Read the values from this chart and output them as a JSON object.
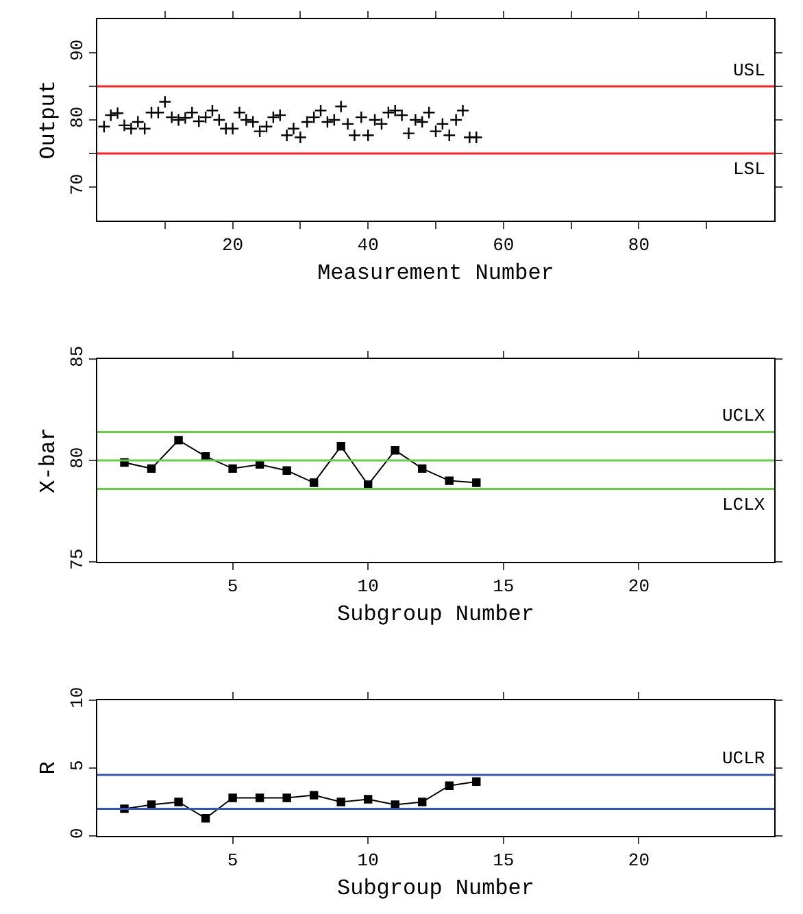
{
  "chart_data": [
    {
      "type": "scatter",
      "xlabel": "Measurement Number",
      "ylabel": "Output",
      "marker": "cross",
      "xlim": [
        0,
        100
      ],
      "ylim": [
        65,
        95
      ],
      "xticks": [
        {
          "value": 10,
          "label": null
        },
        20,
        {
          "value": 30,
          "label": null
        },
        40,
        {
          "value": 50,
          "label": null
        },
        60,
        {
          "value": 70,
          "label": null
        },
        80,
        {
          "value": 90,
          "label": null
        }
      ],
      "yticks": [
        70,
        {
          "value": 75,
          "label": null
        },
        80,
        {
          "value": 85,
          "label": null
        },
        90
      ],
      "x": [
        1,
        2,
        3,
        4,
        5,
        6,
        7,
        8,
        9,
        10,
        11,
        12,
        13,
        14,
        15,
        16,
        17,
        18,
        19,
        20,
        21,
        22,
        23,
        24,
        25,
        26,
        27,
        28,
        29,
        30,
        31,
        32,
        33,
        34,
        35,
        36,
        37,
        38,
        39,
        40,
        41,
        42,
        43,
        44,
        45,
        46,
        47,
        48,
        49,
        50,
        51,
        52,
        53,
        54,
        55,
        56
      ],
      "series": [
        {
          "color": "#000000",
          "values": [
            79.0,
            80.7,
            81.0,
            79.2,
            78.7,
            79.7,
            78.7,
            81.1,
            81.1,
            82.7,
            80.4,
            80.0,
            80.3,
            81.1,
            79.8,
            80.4,
            81.4,
            80.0,
            78.7,
            78.7,
            81.1,
            80.0,
            79.7,
            78.3,
            79.0,
            80.4,
            80.7,
            77.7,
            78.7,
            77.4,
            79.7,
            80.4,
            81.4,
            79.7,
            80.0,
            82.0,
            79.4,
            77.7,
            80.4,
            77.7,
            80.0,
            79.4,
            81.1,
            81.4,
            80.7,
            78.0,
            80.0,
            79.7,
            81.1,
            78.3,
            79.4,
            77.7,
            80.0,
            81.4,
            77.4,
            77.4
          ]
        }
      ],
      "ref_lines": [
        {
          "axis": "y",
          "value": 85,
          "label": "USL",
          "color": "#ff2020"
        },
        {
          "axis": "y",
          "value": 75,
          "label": "LSL",
          "color": "#ff2020"
        }
      ]
    },
    {
      "type": "line",
      "xlabel": "Subgroup Number",
      "ylabel": "X-bar",
      "marker": "square",
      "xlim": [
        0,
        25
      ],
      "ylim": [
        75,
        85
      ],
      "xticks": [
        5,
        10,
        15,
        20
      ],
      "yticks": [
        75,
        80,
        85
      ],
      "x": [
        1,
        2,
        3,
        4,
        5,
        6,
        7,
        8,
        9,
        10,
        11,
        12,
        13,
        14
      ],
      "series": [
        {
          "color": "#000000",
          "values": [
            79.9,
            79.6,
            81.0,
            80.2,
            79.6,
            79.8,
            79.5,
            78.9,
            80.7,
            78.8,
            80.5,
            79.6,
            79.0,
            78.9
          ]
        }
      ],
      "ref_lines": [
        {
          "axis": "y",
          "value": 81.4,
          "label": "UCLX",
          "color": "#66cc44"
        },
        {
          "axis": "y",
          "value": 80,
          "color": "#66cc44"
        },
        {
          "axis": "y",
          "value": 78.6,
          "label": "LCLX",
          "color": "#66cc44"
        }
      ]
    },
    {
      "type": "line",
      "xlabel": "Subgroup Number",
      "ylabel": "R",
      "marker": "square",
      "xlim": [
        0,
        25
      ],
      "ylim": [
        0,
        10
      ],
      "xticks": [
        5,
        10,
        15,
        20
      ],
      "yticks": [
        0,
        5,
        10
      ],
      "x": [
        1,
        2,
        3,
        4,
        5,
        6,
        7,
        8,
        9,
        10,
        11,
        12,
        13,
        14
      ],
      "series": [
        {
          "color": "#000000",
          "values": [
            2.0,
            2.3,
            2.5,
            1.3,
            2.8,
            2.8,
            2.8,
            3.0,
            2.5,
            2.7,
            2.3,
            2.5,
            3.7,
            4.0
          ]
        }
      ],
      "ref_lines": [
        {
          "axis": "y",
          "value": 4.5,
          "label": "UCLR",
          "color": "#3355bb"
        },
        {
          "axis": "y",
          "value": 2.0,
          "color": "#3355bb"
        }
      ]
    }
  ]
}
